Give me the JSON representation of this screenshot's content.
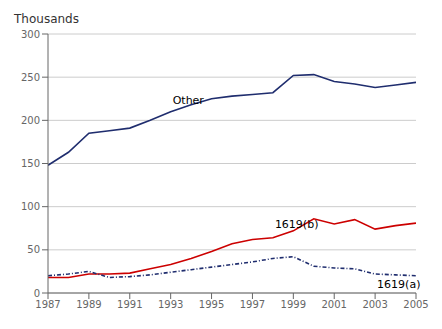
{
  "chart_data": {
    "type": "line",
    "y_label": "Thousands",
    "x": [
      1987,
      1988,
      1989,
      1990,
      1991,
      1992,
      1993,
      1994,
      1995,
      1996,
      1997,
      1998,
      1999,
      2000,
      2001,
      2002,
      2003,
      2004,
      2005
    ],
    "series": [
      {
        "name": "Other",
        "color": "#1f2d6e",
        "line_style": "solid",
        "values": [
          148,
          163,
          185,
          188,
          191,
          200,
          210,
          218,
          225,
          228,
          230,
          232,
          252,
          253,
          245,
          242,
          238,
          241,
          244
        ]
      },
      {
        "name": "1619(b)",
        "color": "#cc0000",
        "line_style": "solid",
        "values": [
          18,
          18,
          22,
          22,
          23,
          28,
          33,
          40,
          48,
          57,
          62,
          64,
          72,
          86,
          80,
          85,
          74,
          78,
          81
        ]
      },
      {
        "name": "1619(a)",
        "color": "#1f2d6e",
        "line_style": "dashdot",
        "values": [
          20,
          22,
          25,
          18,
          19,
          21,
          24,
          27,
          30,
          33,
          36,
          40,
          42,
          31,
          29,
          28,
          22,
          21,
          20
        ]
      }
    ],
    "xlim": [
      1987,
      2005
    ],
    "xticks": [
      1987,
      1989,
      1991,
      1993,
      1995,
      1997,
      1999,
      2001,
      2003,
      2005
    ],
    "ylim": [
      0,
      300
    ],
    "yticks": [
      0,
      50,
      100,
      150,
      200,
      250,
      300
    ],
    "grid": true
  }
}
